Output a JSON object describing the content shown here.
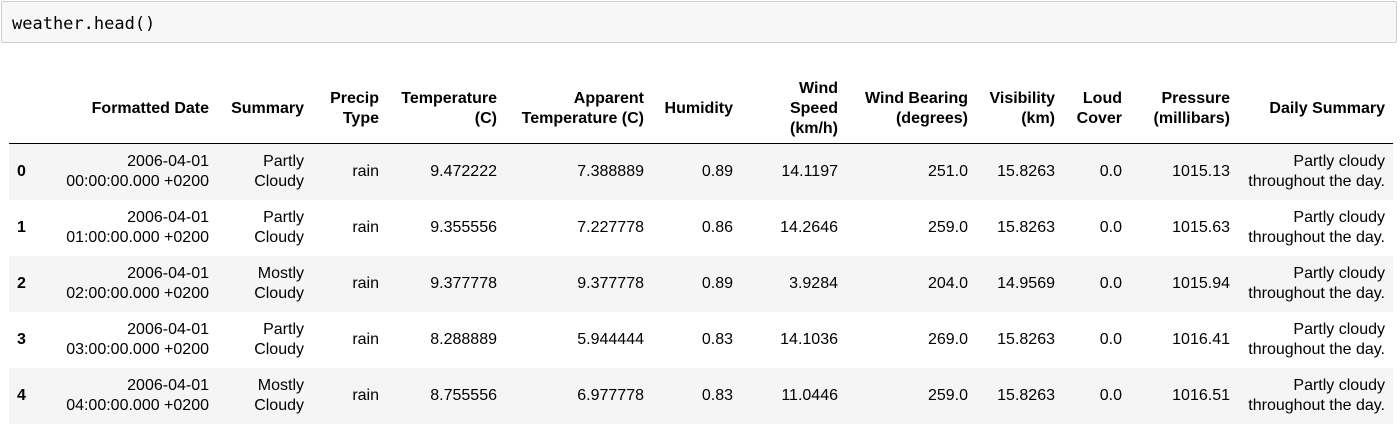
{
  "code_cell": {
    "source": "weather.head()"
  },
  "table": {
    "columns": [
      [
        "Formatted Date"
      ],
      [
        "Summary"
      ],
      [
        "Precip",
        "Type"
      ],
      [
        "Temperature",
        "(C)"
      ],
      [
        "Apparent",
        "Temperature (C)"
      ],
      [
        "Humidity"
      ],
      [
        "Wind",
        "Speed",
        "(km/h)"
      ],
      [
        "Wind Bearing",
        "(degrees)"
      ],
      [
        "Visibility",
        "(km)"
      ],
      [
        "Loud",
        "Cover"
      ],
      [
        "Pressure",
        "(millibars)"
      ],
      [
        "Daily Summary"
      ]
    ],
    "rows": [
      {
        "index": "0",
        "cells": [
          [
            "2006-04-01",
            "00:00:00.000 +0200"
          ],
          [
            "Partly",
            "Cloudy"
          ],
          [
            "rain"
          ],
          [
            "9.472222"
          ],
          [
            "7.388889"
          ],
          [
            "0.89"
          ],
          [
            "14.1197"
          ],
          [
            "251.0"
          ],
          [
            "15.8263"
          ],
          [
            "0.0"
          ],
          [
            "1015.13"
          ],
          [
            "Partly cloudy",
            "throughout the day."
          ]
        ]
      },
      {
        "index": "1",
        "cells": [
          [
            "2006-04-01",
            "01:00:00.000 +0200"
          ],
          [
            "Partly",
            "Cloudy"
          ],
          [
            "rain"
          ],
          [
            "9.355556"
          ],
          [
            "7.227778"
          ],
          [
            "0.86"
          ],
          [
            "14.2646"
          ],
          [
            "259.0"
          ],
          [
            "15.8263"
          ],
          [
            "0.0"
          ],
          [
            "1015.63"
          ],
          [
            "Partly cloudy",
            "throughout the day."
          ]
        ]
      },
      {
        "index": "2",
        "cells": [
          [
            "2006-04-01",
            "02:00:00.000 +0200"
          ],
          [
            "Mostly",
            "Cloudy"
          ],
          [
            "rain"
          ],
          [
            "9.377778"
          ],
          [
            "9.377778"
          ],
          [
            "0.89"
          ],
          [
            "3.9284"
          ],
          [
            "204.0"
          ],
          [
            "14.9569"
          ],
          [
            "0.0"
          ],
          [
            "1015.94"
          ],
          [
            "Partly cloudy",
            "throughout the day."
          ]
        ]
      },
      {
        "index": "3",
        "cells": [
          [
            "2006-04-01",
            "03:00:00.000 +0200"
          ],
          [
            "Partly",
            "Cloudy"
          ],
          [
            "rain"
          ],
          [
            "8.288889"
          ],
          [
            "5.944444"
          ],
          [
            "0.83"
          ],
          [
            "14.1036"
          ],
          [
            "269.0"
          ],
          [
            "15.8263"
          ],
          [
            "0.0"
          ],
          [
            "1016.41"
          ],
          [
            "Partly cloudy",
            "throughout the day."
          ]
        ]
      },
      {
        "index": "4",
        "cells": [
          [
            "2006-04-01",
            "04:00:00.000 +0200"
          ],
          [
            "Mostly",
            "Cloudy"
          ],
          [
            "rain"
          ],
          [
            "8.755556"
          ],
          [
            "6.977778"
          ],
          [
            "0.83"
          ],
          [
            "11.0446"
          ],
          [
            "259.0"
          ],
          [
            "15.8263"
          ],
          [
            "0.0"
          ],
          [
            "1016.51"
          ],
          [
            "Partly cloudy",
            "throughout the day."
          ]
        ]
      }
    ]
  }
}
